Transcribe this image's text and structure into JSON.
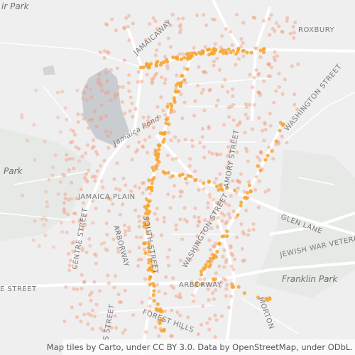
{
  "labels": {
    "park_top": "ir Park",
    "roxbury": "ROXBURY",
    "jamaicaway": "JAMAICAWAY",
    "jamaica_pond": "Jamaica Pond",
    "park_left": "Park",
    "jamaica_plain": "JAMAICA PLAIN",
    "centre_street": "CENTRE STREET",
    "arborway_vertical": "ARBORWAY",
    "south_street": "SOUTH STREET",
    "amory_street": "AMORY STREET",
    "washington_street_north": "WASHINGTON STREET",
    "washington_street_south": "WASHINGTON STREET",
    "glen_lane": "GLEN LANE",
    "jewish_war_veterans": "JEWISH WAR VETERANS",
    "franklin_park": "Franklin Park",
    "arborway": "ARBORWAY",
    "e_street": "E STREET",
    "morton": "MORTON",
    "forest_hills": "FOREST HILLS",
    "s_street": "S STREET"
  },
  "attribution": "Map tiles by Carto, under CC BY 3.0. Data by OpenStreetMap, under ODbL."
}
